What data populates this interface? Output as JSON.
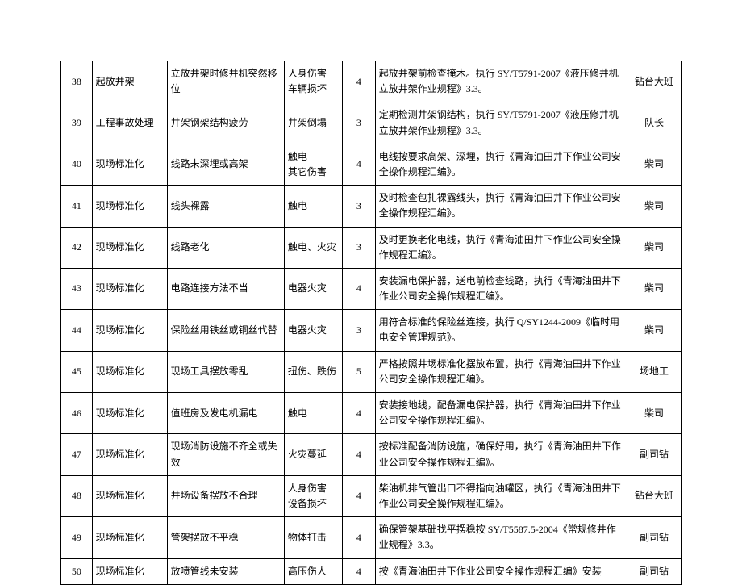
{
  "table": {
    "rows": [
      {
        "num": "38",
        "cat": "起放井架",
        "hazard": "立放井架时修井机突然移位",
        "risk": "人身伤害\n车辆损坏",
        "level": "4",
        "measure": "起放井架前检查掩木。执行 SY/T5791-2007《液压修井机立放井架作业规程》3.3。",
        "resp": "钻台大班"
      },
      {
        "num": "39",
        "cat": "工程事故处理",
        "hazard": "井架钢架结构疲劳",
        "risk": "井架倒塌",
        "level": "3",
        "measure": "定期检测井架钢结构，执行 SY/T5791-2007《液压修井机立放井架作业规程》3.3。",
        "resp": "队长"
      },
      {
        "num": "40",
        "cat": "现场标准化",
        "hazard": "线路未深埋或高架",
        "risk": "触电\n其它伤害",
        "level": "4",
        "measure": "电线按要求高架、深埋，执行《青海油田井下作业公司安全操作规程汇编》。",
        "resp": "柴司"
      },
      {
        "num": "41",
        "cat": "现场标准化",
        "hazard": "线头裸露",
        "risk": "触电",
        "level": "3",
        "measure": "及时检查包扎裸露线头，执行《青海油田井下作业公司安全操作规程汇编》。",
        "resp": "柴司"
      },
      {
        "num": "42",
        "cat": "现场标准化",
        "hazard": "线路老化",
        "risk": "触电、火灾",
        "level": "3",
        "measure": "及时更换老化电线，执行《青海油田井下作业公司安全操作规程汇编》。",
        "resp": "柴司"
      },
      {
        "num": "43",
        "cat": "现场标准化",
        "hazard": "电路连接方法不当",
        "risk": "电器火灾",
        "level": "4",
        "measure": "安装漏电保护器，送电前检查线路，执行《青海油田井下作业公司安全操作规程汇编》。",
        "resp": "柴司"
      },
      {
        "num": "44",
        "cat": "现场标准化",
        "hazard": "保险丝用铁丝或铜丝代替",
        "risk": "电器火灾",
        "level": "3",
        "measure": "用符合标准的保险丝连接，执行 Q/SY1244-2009《临时用电安全管理规范》。",
        "resp": "柴司"
      },
      {
        "num": "45",
        "cat": "现场标准化",
        "hazard": "现场工具摆放零乱",
        "risk": "扭伤、跌伤",
        "level": "5",
        "measure": "严格按照井场标准化摆放布置，执行《青海油田井下作业公司安全操作规程汇编》。",
        "resp": "场地工"
      },
      {
        "num": "46",
        "cat": "现场标准化",
        "hazard": "值班房及发电机漏电",
        "risk": "触电",
        "level": "4",
        "measure": "安装接地线，配备漏电保护器，执行《青海油田井下作业公司安全操作规程汇编》。",
        "resp": "柴司"
      },
      {
        "num": "47",
        "cat": "现场标准化",
        "hazard": "现场消防设施不齐全或失效",
        "risk": "火灾蔓延",
        "level": "4",
        "measure": "按标准配备消防设施，确保好用，执行《青海油田井下作业公司安全操作规程汇编》。",
        "resp": "副司钻"
      },
      {
        "num": "48",
        "cat": "现场标准化",
        "hazard": "井场设备摆放不合理",
        "risk": "人身伤害\n设备损坏",
        "level": "4",
        "measure": "柴油机排气管出口不得指向油罐区，执行《青海油田井下作业公司安全操作规程汇编》。",
        "resp": "钻台大班"
      },
      {
        "num": "49",
        "cat": "现场标准化",
        "hazard": "管架摆放不平稳",
        "risk": "物体打击",
        "level": "4",
        "measure": "确保管架基础找平摆稳按 SY/T5587.5-2004《常规修井作业规程》3.3。",
        "resp": "副司钻"
      },
      {
        "num": "50",
        "cat": "现场标准化",
        "hazard": "放喷管线未安装",
        "risk": "高压伤人",
        "level": "4",
        "measure": "按《青海油田井下作业公司安全操作规程汇编》安装",
        "resp": "副司钻"
      }
    ]
  }
}
